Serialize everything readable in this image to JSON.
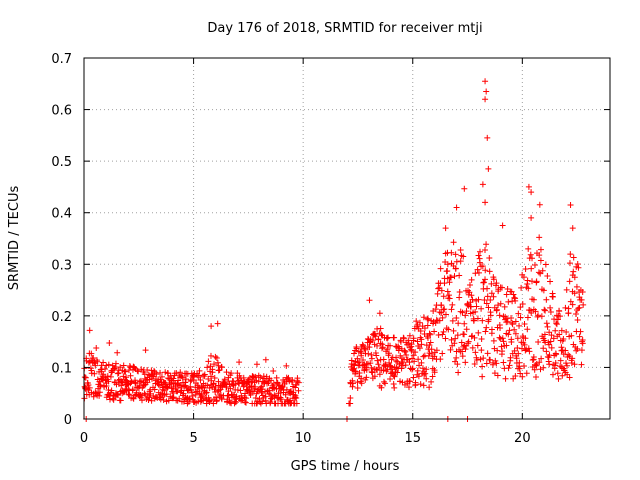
{
  "chart_data": {
    "type": "scatter",
    "title": "Day 176 of 2018, SRMTID for receiver mtji",
    "xlabel": "GPS time / hours",
    "ylabel": "SRMTID / TECUs",
    "xlim": [
      0,
      24
    ],
    "ylim": [
      0,
      0.7
    ],
    "xticks": [
      0,
      5,
      10,
      15,
      20
    ],
    "yticks": [
      0,
      0.1,
      0.2,
      0.3,
      0.4,
      0.5,
      0.6,
      0.7
    ],
    "xtick_labels": [
      "0",
      "5",
      "10",
      "15",
      "20"
    ],
    "ytick_labels": [
      "0",
      "0.1",
      "0.2",
      "0.3",
      "0.4",
      "0.5",
      "0.6",
      "0.7"
    ],
    "grid": true,
    "marker": "+",
    "series": [
      {
        "name": "SRMTID",
        "color": "#ff0000",
        "segments": [
          {
            "x": [
              0.0,
              0.3,
              0.6,
              0.9,
              1.2,
              1.5,
              1.8,
              2.1,
              2.4,
              2.7,
              3.0,
              3.3,
              3.6,
              3.9,
              4.2,
              4.5,
              4.8,
              5.1,
              5.4,
              5.7,
              6.0,
              6.3,
              6.6,
              6.9,
              7.2,
              7.5,
              7.8,
              8.1,
              8.4,
              8.7,
              9.0,
              9.3,
              9.6,
              9.8
            ],
            "y": [
              0.08,
              0.085,
              0.08,
              0.075,
              0.072,
              0.07,
              0.07,
              0.072,
              0.068,
              0.066,
              0.065,
              0.064,
              0.062,
              0.06,
              0.062,
              0.06,
              0.058,
              0.06,
              0.062,
              0.07,
              0.08,
              0.065,
              0.06,
              0.06,
              0.058,
              0.056,
              0.055,
              0.055,
              0.054,
              0.053,
              0.052,
              0.052,
              0.05,
              0.05
            ],
            "spread": [
              0.04,
              0.045,
              0.04,
              0.035,
              0.035,
              0.035,
              0.035,
              0.035,
              0.03,
              0.03,
              0.03,
              0.03,
              0.03,
              0.03,
              0.03,
              0.03,
              0.03,
              0.03,
              0.035,
              0.045,
              0.05,
              0.035,
              0.03,
              0.03,
              0.03,
              0.03,
              0.03,
              0.03,
              0.03,
              0.03,
              0.03,
              0.03,
              0.03,
              0.03
            ]
          },
          {
            "x": [
              12.1,
              12.2,
              12.5,
              13.0,
              13.5,
              14.0,
              14.5,
              15.0,
              15.5,
              16.0,
              16.3,
              16.6,
              17.0,
              17.3,
              17.6,
              18.0,
              18.3,
              18.6,
              19.0,
              19.4,
              19.8,
              20.2,
              20.6,
              21.0,
              21.4,
              21.8,
              22.2,
              22.6,
              22.8
            ],
            "y": [
              0.0,
              0.1,
              0.1,
              0.11,
              0.12,
              0.11,
              0.11,
              0.12,
              0.13,
              0.14,
              0.2,
              0.22,
              0.22,
              0.21,
              0.19,
              0.2,
              0.22,
              0.18,
              0.17,
              0.17,
              0.16,
              0.21,
              0.2,
              0.22,
              0.16,
              0.13,
              0.2,
              0.2,
              0.18
            ],
            "spread": [
              0.0,
              0.04,
              0.04,
              0.05,
              0.06,
              0.05,
              0.05,
              0.06,
              0.07,
              0.08,
              0.1,
              0.12,
              0.13,
              0.12,
              0.1,
              0.12,
              0.14,
              0.1,
              0.09,
              0.1,
              0.1,
              0.13,
              0.12,
              0.12,
              0.08,
              0.07,
              0.12,
              0.1,
              0.08
            ]
          }
        ],
        "notable_points": [
          {
            "x": 18.3,
            "y": 0.655
          },
          {
            "x": 18.35,
            "y": 0.635
          },
          {
            "x": 18.3,
            "y": 0.62
          },
          {
            "x": 18.4,
            "y": 0.545
          },
          {
            "x": 18.45,
            "y": 0.485
          },
          {
            "x": 18.2,
            "y": 0.455
          },
          {
            "x": 18.3,
            "y": 0.42
          },
          {
            "x": 20.3,
            "y": 0.45
          },
          {
            "x": 20.4,
            "y": 0.44
          },
          {
            "x": 20.4,
            "y": 0.39
          },
          {
            "x": 22.2,
            "y": 0.415
          },
          {
            "x": 22.3,
            "y": 0.37
          },
          {
            "x": 17.0,
            "y": 0.41
          },
          {
            "x": 16.5,
            "y": 0.37
          },
          {
            "x": 6.1,
            "y": 0.185
          },
          {
            "x": 5.8,
            "y": 0.18
          },
          {
            "x": 13.5,
            "y": 0.205
          },
          {
            "x": 0.1,
            "y": 0.0
          },
          {
            "x": 12.0,
            "y": 0.0
          },
          {
            "x": 16.6,
            "y": 0.0
          },
          {
            "x": 17.5,
            "y": 0.0
          }
        ]
      }
    ]
  }
}
